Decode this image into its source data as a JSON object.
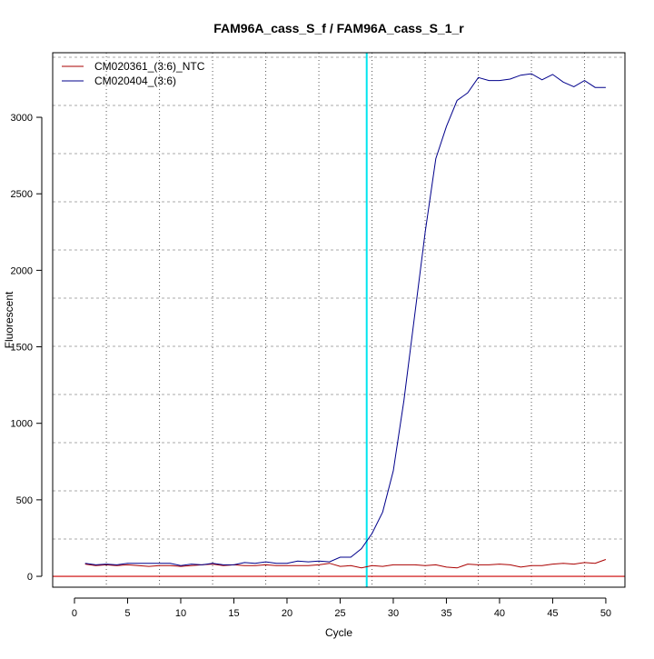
{
  "chart_data": {
    "type": "line",
    "title": "FAM96A_cass_S_f / FAM96A_cass_S_1_r",
    "xlabel": "Cycle",
    "ylabel": "Fluorescent",
    "xlim": [
      -2.05,
      51.8
    ],
    "ylim": [
      -71,
      3422
    ],
    "xticks": [
      0,
      5,
      10,
      15,
      20,
      25,
      30,
      35,
      40,
      45,
      50
    ],
    "yticks": [
      0,
      500,
      1000,
      1500,
      2000,
      2500,
      3000
    ],
    "grid": true,
    "legend": "top-left",
    "threshold_cycle": 27.5,
    "threshold_color": "#00e5ee",
    "baseline_value": 0,
    "baseline_color": "#cc0000",
    "x": [
      1,
      2,
      3,
      4,
      5,
      6,
      7,
      8,
      9,
      10,
      11,
      12,
      13,
      14,
      15,
      16,
      17,
      18,
      19,
      20,
      21,
      22,
      23,
      24,
      25,
      26,
      27,
      28,
      29,
      30,
      31,
      32,
      33,
      34,
      35,
      36,
      37,
      38,
      39,
      40,
      41,
      42,
      43,
      44,
      45,
      46,
      47,
      48,
      49,
      50
    ],
    "series": [
      {
        "name": "CM020361_(3:6)_NTC",
        "color": "#aa0000",
        "values": [
          80,
          70,
          75,
          70,
          75,
          70,
          65,
          70,
          70,
          65,
          70,
          75,
          80,
          70,
          75,
          70,
          70,
          75,
          70,
          70,
          70,
          70,
          75,
          85,
          65,
          70,
          55,
          70,
          65,
          75,
          75,
          75,
          70,
          75,
          60,
          55,
          80,
          75,
          75,
          80,
          75,
          60,
          70,
          70,
          80,
          85,
          80,
          90,
          85,
          110
        ]
      },
      {
        "name": "CM020404_(3:6)",
        "color": "#00008b",
        "values": [
          85,
          75,
          80,
          75,
          85,
          85,
          85,
          85,
          85,
          70,
          80,
          75,
          85,
          75,
          75,
          90,
          85,
          95,
          85,
          85,
          100,
          95,
          100,
          95,
          125,
          125,
          180,
          280,
          420,
          690,
          1150,
          1700,
          2250,
          2730,
          2940,
          3110,
          3160,
          3260,
          3240,
          3240,
          3250,
          3275,
          3285,
          3245,
          3280,
          3230,
          3200,
          3240,
          3195,
          3195
        ]
      }
    ]
  }
}
